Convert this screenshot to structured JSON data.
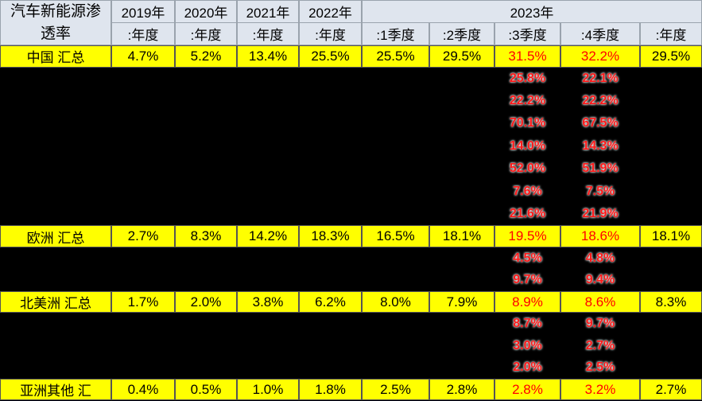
{
  "header": {
    "title": "汽车新能源渗透率",
    "years": [
      "2019年",
      "2020年",
      "2021年",
      "2022年",
      "2023年"
    ],
    "periods": [
      ":年度",
      ":年度",
      ":年度",
      ":年度",
      ":1季度",
      ":2季度",
      ":3季度",
      ":4季度",
      ":年度"
    ]
  },
  "groups": [
    {
      "summary": {
        "label": "中国 汇总",
        "values": [
          "4.7%",
          "5.2%",
          "13.4%",
          "25.5%",
          "25.5%",
          "29.5%",
          "31.5%",
          "32.2%",
          "29.5%"
        ]
      },
      "details": [
        [
          "25.8%",
          "22.1%"
        ],
        [
          "22.2%",
          "22.2%"
        ],
        [
          "70.1%",
          "67.5%"
        ],
        [
          "14.0%",
          "14.3%"
        ],
        [
          "52.0%",
          "51.9%"
        ],
        [
          "7.6%",
          "7.5%"
        ],
        [
          "21.6%",
          "21.9%"
        ]
      ]
    },
    {
      "summary": {
        "label": "欧洲 汇总",
        "values": [
          "2.7%",
          "8.3%",
          "14.2%",
          "18.3%",
          "16.5%",
          "18.1%",
          "19.5%",
          "18.6%",
          "18.1%"
        ]
      },
      "details": [
        [
          "4.5%",
          "4.8%"
        ],
        [
          "9.7%",
          "9.4%"
        ]
      ]
    },
    {
      "summary": {
        "label": "北美洲 汇总",
        "values": [
          "1.7%",
          "2.0%",
          "3.8%",
          "6.2%",
          "8.0%",
          "7.9%",
          "8.9%",
          "8.6%",
          "8.3%"
        ]
      },
      "details": [
        [
          "8.7%",
          "9.7%"
        ],
        [
          "3.0%",
          "2.7%"
        ],
        [
          "2.0%",
          "2.5%"
        ]
      ]
    },
    {
      "summary": {
        "label": "亚洲其他 汇",
        "values": [
          "0.4%",
          "0.5%",
          "1.0%",
          "1.8%",
          "2.5%",
          "2.8%",
          "2.8%",
          "3.2%",
          "2.7%"
        ]
      },
      "details": []
    }
  ]
}
